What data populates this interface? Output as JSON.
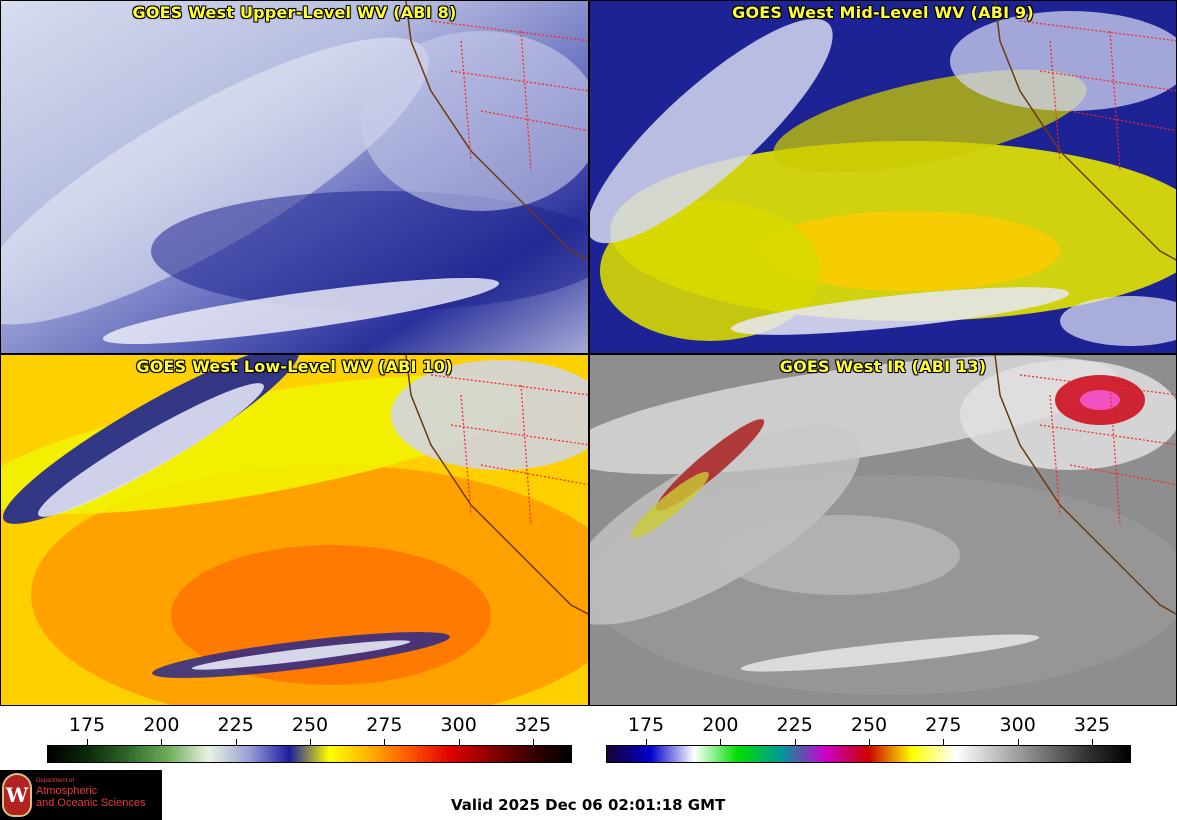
{
  "panels": [
    {
      "title": "GOES West Upper-Level WV (ABI 8)",
      "product": "upper-wv"
    },
    {
      "title": "GOES West Mid-Level WV (ABI 9)",
      "product": "mid-wv"
    },
    {
      "title": "GOES West Low-Level WV (ABI 10)",
      "product": "low-wv"
    },
    {
      "title": "GOES West IR (ABI 13)",
      "product": "ir"
    }
  ],
  "colorbars": [
    {
      "name": "water-vapor-scale",
      "ticks": [
        "175",
        "200",
        "225",
        "250",
        "275",
        "300",
        "325"
      ],
      "colors": [
        "#000000",
        "#0b2a0b",
        "#2f6a2a",
        "#6fae5a",
        "#e8f2e0",
        "#9aa0d8",
        "#1a1f9e",
        "#ffff00",
        "#ffb000",
        "#ff5500",
        "#e00000",
        "#8a0000",
        "#3a0000",
        "#000000"
      ]
    },
    {
      "name": "ir-scale",
      "ticks": [
        "175",
        "200",
        "225",
        "250",
        "275",
        "300",
        "325"
      ],
      "colors": [
        "#1a0033",
        "#0000cc",
        "#ffffff",
        "#00dd00",
        "#009999",
        "#cc00cc",
        "#cc0000",
        "#ffff00",
        "#ffffff",
        "#bbbbbb",
        "#777777",
        "#333333",
        "#000000"
      ]
    }
  ],
  "logo": {
    "seal_letter": "W",
    "dept": "Department of",
    "line1": "Atmospheric",
    "line2": "and Oceanic Sciences"
  },
  "valid_time": "Valid 2025 Dec 06 02:01:18 GMT"
}
